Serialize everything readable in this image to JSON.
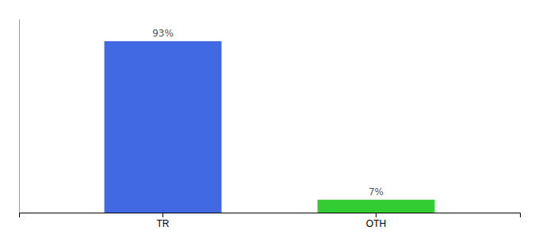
{
  "chart_data": {
    "type": "bar",
    "categories": [
      "TR",
      "OTH"
    ],
    "values": [
      93,
      7
    ],
    "colors": [
      "#4169e1",
      "#33cc33"
    ],
    "ylim": [
      0,
      105
    ],
    "data_labels": true,
    "value_labels": [
      "93%",
      "7%"
    ],
    "tick_labels": "x"
  }
}
